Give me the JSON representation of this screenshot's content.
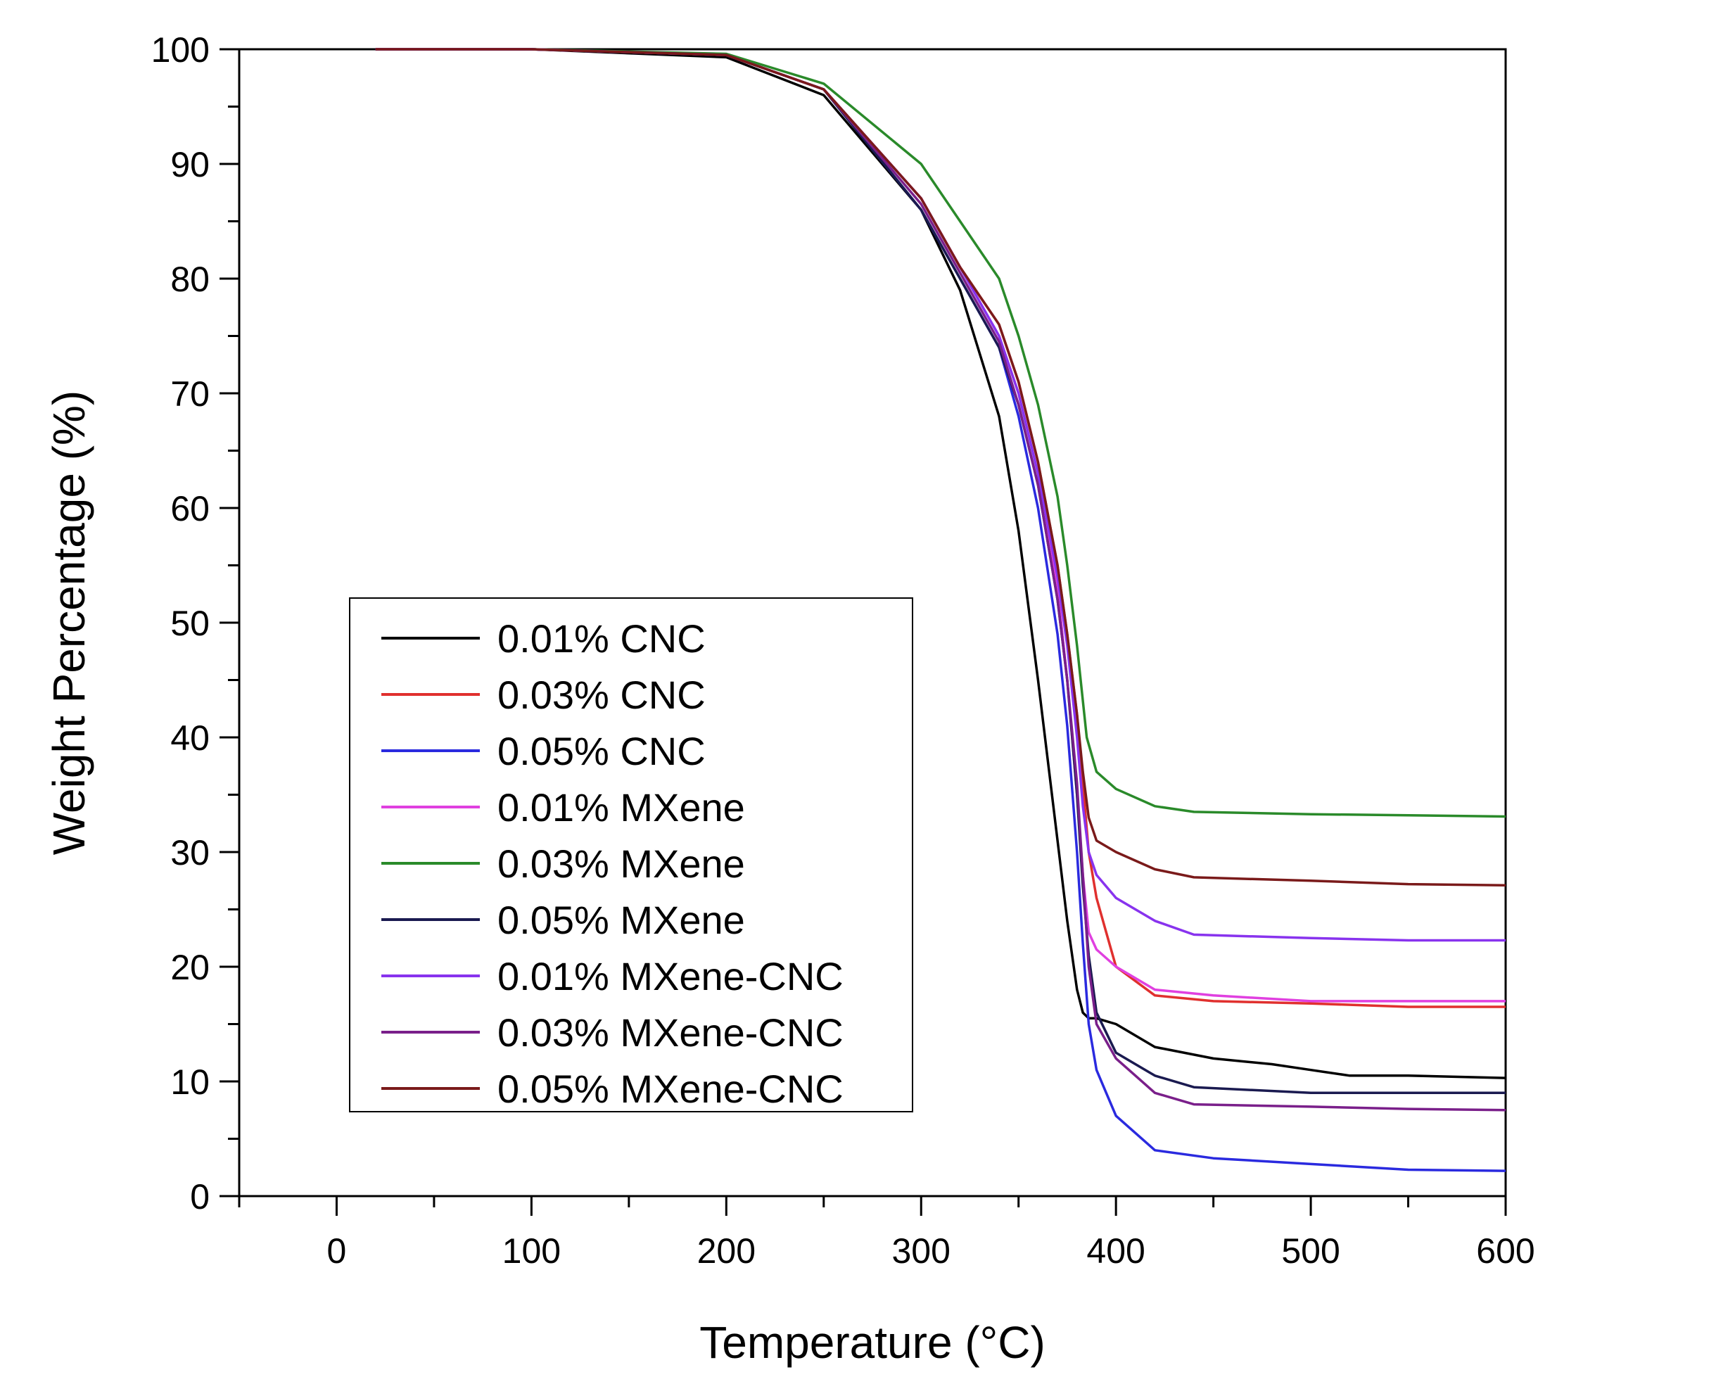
{
  "chart_data": {
    "type": "line",
    "title": "",
    "xlabel": "Temperature (°C)",
    "ylabel": "Weight Percentage (%)",
    "xlim": [
      -50,
      600
    ],
    "ylim": [
      0,
      100
    ],
    "xticks": [
      0,
      100,
      200,
      300,
      400,
      500,
      600
    ],
    "yticks": [
      0,
      10,
      20,
      30,
      40,
      50,
      60,
      70,
      80,
      90,
      100
    ],
    "xtick_labels": [
      "0",
      "100",
      "200",
      "300",
      "400",
      "500",
      "600"
    ],
    "ytick_labels": [
      "0",
      "10",
      "20",
      "30",
      "40",
      "50",
      "60",
      "70",
      "80",
      "90",
      "100"
    ],
    "legend_position": "lower-left",
    "series": [
      {
        "name": "0.01% CNC",
        "color": "#000000",
        "x": [
          20,
          100,
          200,
          250,
          300,
          320,
          340,
          350,
          360,
          370,
          375,
          380,
          383,
          386,
          390,
          400,
          420,
          450,
          480,
          500,
          520,
          550,
          600
        ],
        "y": [
          100,
          100,
          99.3,
          96,
          86,
          79,
          68,
          58,
          45,
          31,
          24,
          18,
          16,
          15.5,
          15.5,
          15,
          13,
          12,
          11.5,
          11,
          10.5,
          10.5,
          10.3
        ]
      },
      {
        "name": "0.03% CNC",
        "color": "#e0302e",
        "x": [
          20,
          100,
          200,
          250,
          300,
          320,
          340,
          350,
          360,
          370,
          375,
          380,
          383,
          386,
          390,
          395,
          400,
          420,
          450,
          500,
          550,
          600
        ],
        "y": [
          100,
          100,
          99.5,
          96.5,
          87,
          81,
          76,
          71,
          64,
          55,
          49,
          42,
          36,
          30,
          26,
          23,
          20,
          17.5,
          17,
          16.8,
          16.5,
          16.5
        ]
      },
      {
        "name": "0.05% CNC",
        "color": "#2a2adf",
        "x": [
          20,
          100,
          200,
          250,
          300,
          320,
          340,
          350,
          360,
          370,
          375,
          380,
          383,
          386,
          390,
          395,
          400,
          420,
          450,
          500,
          550,
          600
        ],
        "y": [
          100,
          100,
          99.5,
          96.5,
          86,
          80,
          74,
          68,
          60,
          49,
          41,
          30,
          22,
          15,
          11,
          9,
          7,
          4,
          3.3,
          2.8,
          2.3,
          2.2
        ]
      },
      {
        "name": "0.01% MXene",
        "color": "#e040e0",
        "x": [
          20,
          100,
          200,
          250,
          300,
          320,
          340,
          350,
          360,
          370,
          375,
          380,
          383,
          386,
          390,
          400,
          420,
          450,
          500,
          550,
          600
        ],
        "y": [
          100,
          100,
          99.5,
          96.5,
          87,
          81,
          75,
          70,
          63,
          53,
          45,
          35,
          28,
          23,
          21.5,
          20,
          18,
          17.5,
          17,
          17,
          17
        ]
      },
      {
        "name": "0.03% MXene",
        "color": "#2a8a2a",
        "x": [
          20,
          100,
          200,
          250,
          300,
          320,
          340,
          350,
          360,
          370,
          375,
          380,
          385,
          390,
          400,
          420,
          440,
          500,
          550,
          600
        ],
        "y": [
          100,
          100,
          99.6,
          97,
          90,
          85,
          80,
          75,
          69,
          61,
          55,
          48,
          40,
          37,
          35.5,
          34,
          33.5,
          33.3,
          33.2,
          33.1
        ]
      },
      {
        "name": "0.05% MXene",
        "color": "#1a1a50",
        "x": [
          20,
          100,
          200,
          250,
          300,
          320,
          340,
          350,
          360,
          370,
          375,
          380,
          383,
          386,
          390,
          400,
          420,
          440,
          500,
          550,
          600
        ],
        "y": [
          100,
          100,
          99.5,
          96.5,
          86,
          80,
          74,
          69,
          62,
          52,
          45,
          35,
          27,
          21,
          16,
          12.5,
          10.5,
          9.5,
          9,
          9,
          9
        ]
      },
      {
        "name": "0.01% MXene-CNC",
        "color": "#8833ee",
        "x": [
          20,
          100,
          200,
          250,
          300,
          320,
          340,
          350,
          360,
          370,
          375,
          380,
          383,
          386,
          390,
          400,
          420,
          440,
          500,
          550,
          600
        ],
        "y": [
          100,
          100,
          99.5,
          96.5,
          87,
          81,
          75,
          70,
          63,
          54,
          48,
          40,
          34,
          30,
          28,
          26,
          24,
          22.8,
          22.5,
          22.3,
          22.3
        ]
      },
      {
        "name": "0.03% MXene-CNC",
        "color": "#7a1f8a",
        "x": [
          20,
          100,
          200,
          250,
          300,
          320,
          340,
          350,
          360,
          370,
          375,
          380,
          383,
          386,
          390,
          400,
          420,
          440,
          500,
          550,
          600
        ],
        "y": [
          100,
          100,
          99.5,
          96.5,
          86.5,
          80.5,
          74.5,
          69,
          62,
          52,
          45,
          36,
          28,
          20,
          15,
          12,
          9,
          8,
          7.8,
          7.6,
          7.5
        ]
      },
      {
        "name": "0.05% MXene-CNC",
        "color": "#7a1a1a",
        "x": [
          20,
          100,
          200,
          250,
          300,
          320,
          340,
          350,
          360,
          370,
          375,
          380,
          383,
          386,
          390,
          400,
          420,
          440,
          500,
          550,
          600
        ],
        "y": [
          100,
          100,
          99.5,
          96.5,
          87,
          81,
          76,
          71,
          64,
          55,
          49,
          42,
          37,
          33,
          31,
          30,
          28.5,
          27.8,
          27.5,
          27.2,
          27.1
        ]
      }
    ]
  }
}
